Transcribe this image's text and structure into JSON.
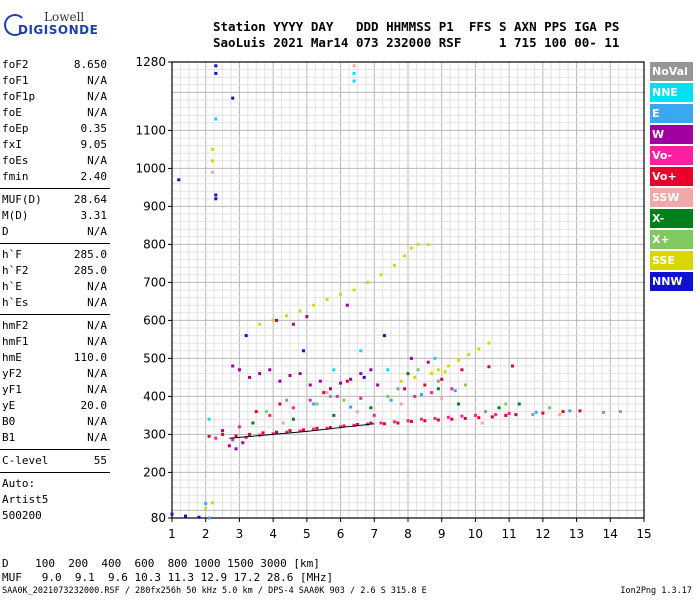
{
  "logo": {
    "line1": "Lowell",
    "line2": "DIGISONDE"
  },
  "header": {
    "row1": "Station YYYY DAY   DDD HHMMSS P1  FFS S AXN PPS IGA PS",
    "row2": "SaoLuis 2021 Mar14 073 232000 RSF     1 715 100 00- 11"
  },
  "params": {
    "group1": [
      {
        "name": "foF2",
        "value": "8.650"
      },
      {
        "name": "foF1",
        "value": "N/A"
      },
      {
        "name": "foF1p",
        "value": "N/A"
      },
      {
        "name": "foE",
        "value": "N/A"
      },
      {
        "name": "foEp",
        "value": "0.35"
      },
      {
        "name": "fxI",
        "value": "9.05"
      },
      {
        "name": "foEs",
        "value": "N/A"
      },
      {
        "name": "fmin",
        "value": "2.40"
      }
    ],
    "group2": [
      {
        "name": "MUF(D)",
        "value": "28.64"
      },
      {
        "name": "M(D)",
        "value": "3.31"
      },
      {
        "name": "D",
        "value": "N/A"
      }
    ],
    "group3": [
      {
        "name": "h`F",
        "value": "285.0"
      },
      {
        "name": "h`F2",
        "value": "285.0"
      },
      {
        "name": "h`E",
        "value": "N/A"
      },
      {
        "name": "h`Es",
        "value": "N/A"
      }
    ],
    "group4": [
      {
        "name": "hmF2",
        "value": "N/A"
      },
      {
        "name": "hmF1",
        "value": "N/A"
      },
      {
        "name": "hmE",
        "value": "110.0"
      },
      {
        "name": "yF2",
        "value": "N/A"
      },
      {
        "name": "yF1",
        "value": "N/A"
      },
      {
        "name": "yE",
        "value": "20.0"
      },
      {
        "name": "B0",
        "value": "N/A"
      },
      {
        "name": "B1",
        "value": "N/A"
      }
    ],
    "clevel": {
      "name": "C-level",
      "value": "55"
    },
    "auto": [
      "Auto:",
      "Artist5",
      "500200"
    ]
  },
  "legend": [
    {
      "label": "NoVal",
      "color": "#969696"
    },
    {
      "label": "NNE",
      "color": "#00e0f0"
    },
    {
      "label": "E",
      "color": "#3aa8f0"
    },
    {
      "label": "W",
      "color": "#a000a0"
    },
    {
      "label": "Vo-",
      "color": "#ff1fa0"
    },
    {
      "label": "Vo+",
      "color": "#e8002a"
    },
    {
      "label": "SSW",
      "color": "#f0a8a8"
    },
    {
      "label": "X-",
      "color": "#00801a"
    },
    {
      "label": "X+",
      "color": "#80c860"
    },
    {
      "label": "SSE",
      "color": "#d8d800"
    },
    {
      "label": "NNW",
      "color": "#1010d0"
    }
  ],
  "bottom": {
    "row1": "D    100  200  400  600  800 1000 1500 3000 [km]",
    "row2": "MUF   9.0  9.1  9.6 10.3 11.3 12.9 17.2 28.6 [MHz]",
    "footer_left": "SAA0K_2021073232000.RSF / 280fx256h 50 kHz 5.0 km / DPS-4 SAA0K 903 / 2.6 S 315.8 E",
    "footer_right": "Ion2Png 1.3.17"
  },
  "chart_data": {
    "type": "scatter",
    "xlim": [
      1,
      15
    ],
    "ylim": [
      80,
      1280
    ],
    "x_ticks": [
      1,
      2,
      3,
      4,
      5,
      6,
      7,
      8,
      9,
      10,
      11,
      12,
      13,
      14,
      15
    ],
    "y_ticks": [
      80,
      200,
      300,
      400,
      500,
      600,
      700,
      800,
      900,
      1000,
      1100,
      1280
    ],
    "grid": true,
    "legend_position": "right",
    "trace_fit": [
      {
        "x": 2.7,
        "y": 290
      },
      {
        "x": 4.0,
        "y": 300
      },
      {
        "x": 5.0,
        "y": 308
      },
      {
        "x": 6.0,
        "y": 318
      },
      {
        "x": 7.0,
        "y": 328
      }
    ],
    "series": [
      {
        "name": "Vo+",
        "color": "#e8002a",
        "points": [
          [
            2.1,
            295
          ],
          [
            2.5,
            300
          ],
          [
            2.9,
            296
          ],
          [
            3.3,
            300
          ],
          [
            3.7,
            304
          ],
          [
            4.1,
            306
          ],
          [
            4.5,
            310
          ],
          [
            4.9,
            312
          ],
          [
            5.3,
            316
          ],
          [
            5.7,
            318
          ],
          [
            6.1,
            322
          ],
          [
            6.5,
            326
          ],
          [
            6.9,
            330
          ],
          [
            7.3,
            328
          ],
          [
            7.7,
            330
          ],
          [
            8.1,
            334
          ],
          [
            8.5,
            336
          ],
          [
            8.9,
            338
          ],
          [
            9.3,
            340
          ],
          [
            9.7,
            342
          ],
          [
            10.1,
            344
          ],
          [
            10.5,
            346
          ],
          [
            10.9,
            350
          ],
          [
            11.2,
            352
          ],
          [
            12.0,
            356
          ],
          [
            12.6,
            360
          ],
          [
            13.1,
            362
          ],
          [
            7.9,
            420
          ],
          [
            8.5,
            430
          ],
          [
            9.0,
            445
          ],
          [
            6.2,
            440
          ],
          [
            5.5,
            410
          ],
          [
            4.2,
            380
          ],
          [
            3.5,
            360
          ],
          [
            9.6,
            470
          ],
          [
            10.4,
            478
          ],
          [
            11.1,
            480
          ]
        ]
      },
      {
        "name": "Vo-",
        "color": "#ff1fa0",
        "points": [
          [
            2.3,
            290
          ],
          [
            2.8,
            286
          ],
          [
            3.2,
            292
          ],
          [
            3.6,
            298
          ],
          [
            4.0,
            302
          ],
          [
            4.4,
            306
          ],
          [
            4.8,
            309
          ],
          [
            5.2,
            314
          ],
          [
            5.6,
            316
          ],
          [
            6.0,
            320
          ],
          [
            6.4,
            324
          ],
          [
            6.8,
            327
          ],
          [
            7.2,
            330
          ],
          [
            7.6,
            333
          ],
          [
            8.0,
            336
          ],
          [
            8.4,
            340
          ],
          [
            8.8,
            342
          ],
          [
            9.2,
            345
          ],
          [
            9.6,
            348
          ],
          [
            10.0,
            350
          ],
          [
            10.6,
            352
          ],
          [
            11.0,
            355
          ],
          [
            3.9,
            350
          ],
          [
            4.6,
            370
          ],
          [
            5.1,
            390
          ],
          [
            5.9,
            400
          ],
          [
            6.6,
            395
          ],
          [
            8.2,
            400
          ],
          [
            8.7,
            410
          ],
          [
            9.3,
            420
          ],
          [
            3.0,
            320
          ],
          [
            7.0,
            350
          ]
        ]
      },
      {
        "name": "W",
        "color": "#a000a0",
        "points": [
          [
            2.8,
            480
          ],
          [
            3.0,
            470
          ],
          [
            3.3,
            450
          ],
          [
            3.6,
            460
          ],
          [
            3.9,
            470
          ],
          [
            4.2,
            440
          ],
          [
            4.5,
            455
          ],
          [
            4.8,
            460
          ],
          [
            5.1,
            430
          ],
          [
            5.4,
            440
          ],
          [
            5.7,
            420
          ],
          [
            6.0,
            435
          ],
          [
            6.3,
            445
          ],
          [
            6.6,
            460
          ],
          [
            6.9,
            470
          ],
          [
            7.1,
            430
          ],
          [
            2.7,
            270
          ],
          [
            2.9,
            262
          ],
          [
            3.1,
            278
          ],
          [
            2.5,
            310
          ],
          [
            4.1,
            600
          ],
          [
            4.6,
            590
          ],
          [
            5.0,
            610
          ],
          [
            6.2,
            640
          ],
          [
            8.1,
            500
          ],
          [
            8.6,
            490
          ]
        ]
      },
      {
        "name": "SSE",
        "color": "#d8d800",
        "points": [
          [
            3.6,
            590
          ],
          [
            4.0,
            600
          ],
          [
            4.4,
            612
          ],
          [
            4.8,
            625
          ],
          [
            5.2,
            640
          ],
          [
            5.6,
            655
          ],
          [
            6.0,
            668
          ],
          [
            6.4,
            680
          ],
          [
            6.8,
            700
          ],
          [
            7.2,
            720
          ],
          [
            7.6,
            745
          ],
          [
            7.9,
            770
          ],
          [
            8.1,
            790
          ],
          [
            8.3,
            800
          ],
          [
            8.6,
            800
          ],
          [
            8.9,
            470
          ],
          [
            9.2,
            480
          ],
          [
            9.5,
            495
          ],
          [
            9.8,
            510
          ],
          [
            10.1,
            525
          ],
          [
            10.4,
            540
          ],
          [
            7.8,
            440
          ],
          [
            8.2,
            450
          ],
          [
            8.7,
            460
          ],
          [
            9.1,
            465
          ],
          [
            2.2,
            1050
          ],
          [
            2.2,
            1020
          ],
          [
            2.0,
            105
          ],
          [
            2.2,
            120
          ]
        ]
      },
      {
        "name": "SSW",
        "color": "#f0a8a8",
        "points": [
          [
            2.2,
            990
          ],
          [
            6.4,
            1270
          ],
          [
            5.6,
            410
          ],
          [
            4.3,
            330
          ],
          [
            6.5,
            360
          ],
          [
            7.8,
            380
          ],
          [
            9.0,
            395
          ],
          [
            10.2,
            330
          ],
          [
            12.5,
            352
          ]
        ]
      },
      {
        "name": "E",
        "color": "#3aa8f0",
        "points": [
          [
            2.1,
            80
          ],
          [
            2.0,
            118
          ],
          [
            5.2,
            380
          ],
          [
            6.3,
            372
          ],
          [
            7.5,
            390
          ],
          [
            8.4,
            405
          ],
          [
            9.4,
            415
          ],
          [
            11.8,
            358
          ],
          [
            12.8,
            362
          ]
        ]
      },
      {
        "name": "NNE",
        "color": "#00e0f0",
        "points": [
          [
            2.3,
            1130
          ],
          [
            6.4,
            1250
          ],
          [
            6.4,
            1230
          ],
          [
            2.1,
            340
          ],
          [
            5.8,
            470
          ],
          [
            6.6,
            520
          ],
          [
            7.4,
            470
          ],
          [
            8.8,
            500
          ]
        ]
      },
      {
        "name": "NNW",
        "color": "#1010d0",
        "points": [
          [
            2.3,
            1270
          ],
          [
            2.3,
            1250
          ],
          [
            2.3,
            930
          ],
          [
            2.3,
            920
          ],
          [
            2.8,
            1185
          ],
          [
            1.2,
            970
          ],
          [
            1.0,
            90
          ],
          [
            1.4,
            85
          ],
          [
            1.8,
            82
          ],
          [
            3.2,
            560
          ],
          [
            4.9,
            520
          ],
          [
            6.7,
            450
          ],
          [
            7.3,
            560
          ]
        ]
      },
      {
        "name": "X-",
        "color": "#00801a",
        "points": [
          [
            3.4,
            330
          ],
          [
            4.6,
            340
          ],
          [
            5.8,
            350
          ],
          [
            6.9,
            370
          ],
          [
            8.0,
            460
          ],
          [
            8.9,
            420
          ],
          [
            9.5,
            380
          ],
          [
            10.7,
            370
          ],
          [
            11.3,
            380
          ]
        ]
      },
      {
        "name": "X+",
        "color": "#80c860",
        "points": [
          [
            3.8,
            360
          ],
          [
            5.3,
            380
          ],
          [
            6.1,
            390
          ],
          [
            7.4,
            400
          ],
          [
            8.3,
            470
          ],
          [
            9.7,
            430
          ],
          [
            10.9,
            380
          ],
          [
            12.2,
            370
          ]
        ]
      },
      {
        "name": "NoVal",
        "color": "#969696",
        "points": [
          [
            4.4,
            390
          ],
          [
            5.7,
            400
          ],
          [
            7.7,
            420
          ],
          [
            8.9,
            440
          ],
          [
            10.3,
            360
          ],
          [
            11.7,
            352
          ],
          [
            13.8,
            358
          ],
          [
            14.3,
            360
          ]
        ]
      }
    ]
  }
}
